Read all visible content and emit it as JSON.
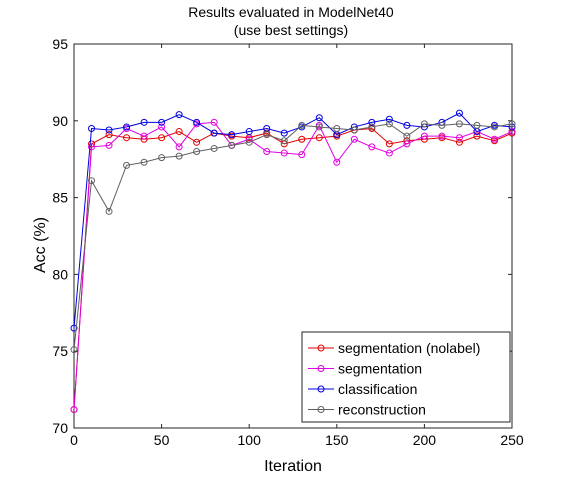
{
  "chart_data": {
    "type": "line",
    "title": "Results evaluated in ModelNet40",
    "subtitle": "(use best settings)",
    "xlabel": "Iteration",
    "ylabel": "Acc (%)",
    "xlim": [
      0,
      250
    ],
    "ylim": [
      70,
      95
    ],
    "xticks": [
      0,
      50,
      100,
      150,
      200,
      250
    ],
    "yticks": [
      70,
      75,
      80,
      85,
      90,
      95
    ],
    "grid": false,
    "legend_position": "bottom-right",
    "x": [
      0,
      10,
      20,
      30,
      40,
      50,
      60,
      70,
      80,
      90,
      100,
      110,
      120,
      130,
      140,
      150,
      160,
      170,
      180,
      190,
      200,
      210,
      220,
      230,
      240,
      250
    ],
    "series": [
      {
        "name": "segmentation (nolabel)",
        "color": "#e00000",
        "values": [
          71.2,
          88.5,
          89.1,
          88.9,
          88.8,
          88.9,
          89.3,
          88.6,
          89.2,
          89.0,
          88.9,
          89.2,
          88.5,
          88.8,
          88.9,
          89.0,
          89.4,
          89.5,
          88.5,
          88.7,
          88.8,
          88.9,
          88.6,
          89.0,
          88.7,
          89.2
        ]
      },
      {
        "name": "segmentation",
        "color": "#e000e0",
        "values": [
          71.2,
          88.3,
          88.4,
          89.5,
          89.0,
          89.6,
          88.3,
          89.8,
          89.9,
          88.4,
          88.8,
          88.0,
          87.9,
          87.8,
          89.7,
          87.3,
          88.8,
          88.3,
          87.9,
          88.5,
          89.0,
          89.0,
          88.9,
          89.3,
          88.8,
          89.3
        ]
      },
      {
        "name": "classification",
        "color": "#0000e0",
        "values": [
          76.5,
          89.5,
          89.4,
          89.6,
          89.9,
          89.9,
          90.4,
          89.9,
          89.2,
          89.1,
          89.3,
          89.5,
          89.2,
          89.6,
          90.2,
          89.1,
          89.6,
          89.9,
          90.1,
          89.7,
          89.6,
          89.9,
          90.5,
          89.3,
          89.7,
          89.6
        ]
      },
      {
        "name": "reconstruction",
        "color": "#606060",
        "values": [
          75.1,
          86.1,
          84.1,
          87.1,
          87.3,
          87.6,
          87.7,
          88.0,
          88.2,
          88.4,
          88.6,
          89.1,
          88.7,
          89.7,
          89.6,
          89.5,
          89.4,
          89.6,
          89.8,
          89.0,
          89.8,
          89.7,
          89.8,
          89.7,
          89.6,
          89.8
        ]
      }
    ]
  }
}
